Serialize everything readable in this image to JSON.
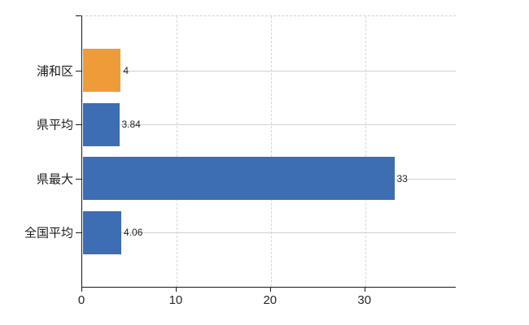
{
  "chart_data": {
    "type": "bar",
    "orientation": "horizontal",
    "title": "",
    "xlabel": "",
    "ylabel": "",
    "categories": [
      "浦和区",
      "県平均",
      "県最大",
      "全国平均"
    ],
    "values": [
      4,
      3.84,
      33,
      4.06
    ],
    "value_labels": [
      "4",
      "3.84",
      "33",
      "4.06"
    ],
    "bar_colors": [
      "#EE9C3A",
      "#3D6DB3",
      "#3D6DB3",
      "#3D6DB3"
    ],
    "x_ticks": [
      0,
      10,
      20,
      30
    ],
    "x_tick_labels": [
      "0",
      "10",
      "20",
      "30"
    ],
    "xlim": [
      0,
      39.6
    ],
    "legend": "none",
    "grid": {
      "vertical": "dashed",
      "horizontal": "solid-at-category-centers",
      "top_border": "dashed"
    }
  },
  "colors": {
    "background": "#ffffff",
    "axis": "#1a1a1a",
    "vertical_gridline": "#d8d8da",
    "horizontal_gridline": "#ccd4cd",
    "top_border": "#d2d2d2",
    "bar_highlight": "#EE9C3A",
    "bar_default": "#3D6DB3",
    "text": "#1c1c1c"
  }
}
